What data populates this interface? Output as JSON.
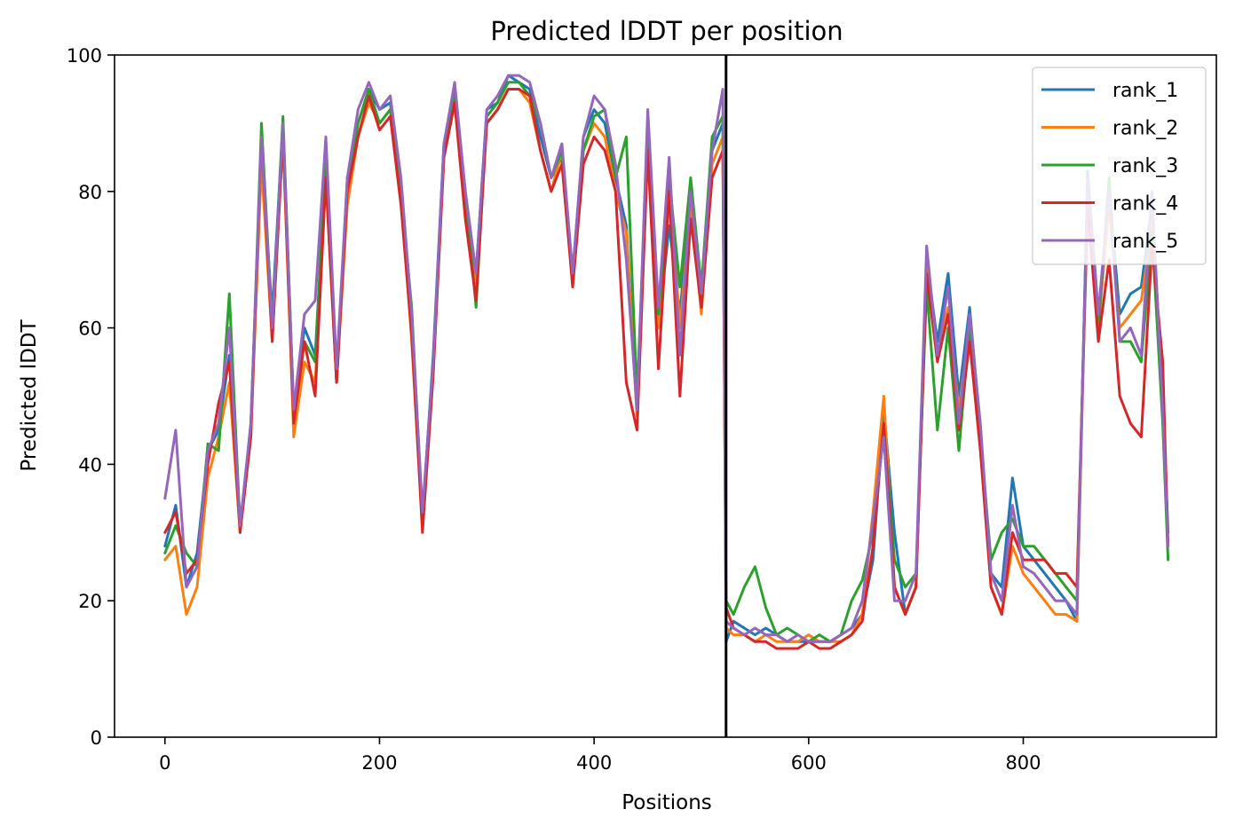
{
  "chart_data": {
    "type": "line",
    "title": "Predicted lDDT per position",
    "xlabel": "Positions",
    "ylabel": "Predicted lDDT",
    "xlim": [
      -47,
      980
    ],
    "ylim": [
      0,
      100
    ],
    "xticks": [
      0,
      200,
      400,
      600,
      800
    ],
    "yticks": [
      0,
      20,
      40,
      60,
      80,
      100
    ],
    "grid": false,
    "legend_position": "top-right",
    "chain_break": 523,
    "x": [
      0,
      10,
      20,
      30,
      40,
      50,
      60,
      70,
      80,
      90,
      100,
      110,
      120,
      130,
      140,
      150,
      160,
      170,
      180,
      190,
      200,
      210,
      220,
      230,
      240,
      250,
      260,
      270,
      280,
      290,
      300,
      310,
      320,
      330,
      340,
      350,
      360,
      370,
      380,
      390,
      400,
      410,
      420,
      430,
      440,
      450,
      460,
      470,
      480,
      490,
      500,
      510,
      520,
      523,
      530,
      540,
      550,
      560,
      570,
      580,
      590,
      600,
      610,
      620,
      630,
      640,
      650,
      660,
      670,
      680,
      690,
      700,
      710,
      720,
      730,
      740,
      750,
      760,
      770,
      780,
      790,
      800,
      810,
      820,
      830,
      840,
      850,
      860,
      870,
      880,
      890,
      900,
      910,
      920,
      930,
      935
    ],
    "series": [
      {
        "name": "rank_1",
        "color": "#1f77b4",
        "values": [
          28,
          34,
          22,
          27,
          42,
          45,
          56,
          30,
          46,
          86,
          62,
          90,
          48,
          60,
          56,
          84,
          52,
          80,
          90,
          95,
          92,
          93,
          80,
          60,
          32,
          56,
          87,
          95,
          80,
          68,
          92,
          93,
          97,
          96,
          95,
          88,
          82,
          85,
          68,
          88,
          92,
          90,
          82,
          75,
          47,
          90,
          60,
          75,
          62,
          80,
          64,
          86,
          90,
          14,
          17,
          16,
          15,
          16,
          15,
          14,
          14,
          14,
          14,
          14,
          15,
          16,
          18,
          26,
          48,
          30,
          18,
          22,
          70,
          58,
          68,
          50,
          63,
          45,
          24,
          22,
          38,
          28,
          26,
          24,
          22,
          20,
          17,
          83,
          62,
          80,
          62,
          65,
          66,
          78,
          50,
          30
        ]
      },
      {
        "name": "rank_2",
        "color": "#ff7f0e",
        "values": [
          26,
          28,
          18,
          22,
          38,
          44,
          52,
          30,
          44,
          84,
          58,
          88,
          44,
          55,
          52,
          82,
          52,
          78,
          88,
          93,
          90,
          92,
          80,
          58,
          31,
          54,
          85,
          93,
          78,
          66,
          90,
          92,
          95,
          95,
          93,
          86,
          80,
          86,
          66,
          86,
          90,
          88,
          80,
          74,
          47,
          88,
          60,
          84,
          60,
          78,
          62,
          84,
          88,
          16,
          15,
          15,
          14,
          15,
          14,
          14,
          14,
          15,
          14,
          14,
          14,
          15,
          18,
          33,
          50,
          22,
          18,
          22,
          70,
          56,
          63,
          48,
          60,
          44,
          22,
          18,
          28,
          24,
          22,
          20,
          18,
          18,
          17,
          80,
          60,
          78,
          60,
          62,
          64,
          75,
          48,
          28
        ]
      },
      {
        "name": "rank_3",
        "color": "#2ca02c",
        "values": [
          27,
          31,
          27,
          25,
          43,
          42,
          65,
          31,
          45,
          90,
          60,
          91,
          48,
          58,
          55,
          85,
          52,
          82,
          90,
          95,
          90,
          92,
          80,
          63,
          32,
          55,
          86,
          94,
          80,
          63,
          91,
          93,
          96,
          96,
          94,
          90,
          82,
          86,
          68,
          86,
          91,
          92,
          82,
          88,
          50,
          88,
          62,
          82,
          66,
          82,
          66,
          88,
          91,
          20,
          18,
          22,
          25,
          19,
          15,
          16,
          15,
          14,
          15,
          14,
          15,
          20,
          23,
          30,
          45,
          26,
          22,
          24,
          66,
          45,
          60,
          42,
          60,
          44,
          26,
          30,
          32,
          28,
          28,
          26,
          24,
          22,
          20,
          81,
          60,
          82,
          58,
          58,
          55,
          74,
          46,
          26
        ]
      },
      {
        "name": "rank_4",
        "color": "#d62728",
        "values": [
          30,
          33,
          24,
          26,
          40,
          49,
          55,
          30,
          44,
          88,
          58,
          88,
          46,
          58,
          50,
          82,
          52,
          80,
          88,
          94,
          89,
          91,
          78,
          59,
          30,
          53,
          85,
          93,
          76,
          64,
          90,
          92,
          95,
          95,
          94,
          86,
          80,
          84,
          66,
          84,
          88,
          86,
          80,
          52,
          45,
          86,
          54,
          80,
          50,
          76,
          63,
          82,
          86,
          19,
          16,
          15,
          14,
          14,
          13,
          13,
          13,
          14,
          13,
          13,
          14,
          15,
          17,
          28,
          46,
          22,
          18,
          22,
          68,
          55,
          62,
          45,
          58,
          42,
          22,
          18,
          30,
          26,
          26,
          26,
          24,
          24,
          22,
          78,
          58,
          70,
          50,
          46,
          44,
          72,
          55,
          28
        ]
      },
      {
        "name": "rank_5",
        "color": "#9467bd",
        "values": [
          35,
          45,
          22,
          25,
          42,
          46,
          60,
          31,
          46,
          88,
          60,
          90,
          48,
          62,
          64,
          88,
          54,
          82,
          92,
          96,
          92,
          94,
          82,
          62,
          33,
          55,
          87,
          96,
          80,
          68,
          92,
          94,
          97,
          97,
          96,
          90,
          82,
          87,
          68,
          88,
          94,
          92,
          84,
          70,
          48,
          92,
          63,
          85,
          56,
          80,
          65,
          86,
          95,
          17,
          16,
          15,
          16,
          15,
          15,
          14,
          15,
          14,
          14,
          14,
          15,
          16,
          20,
          32,
          44,
          20,
          20,
          24,
          72,
          56,
          66,
          46,
          62,
          46,
          24,
          20,
          34,
          25,
          24,
          22,
          20,
          20,
          18,
          82,
          62,
          80,
          58,
          60,
          56,
          80,
          48,
          28
        ]
      }
    ]
  }
}
